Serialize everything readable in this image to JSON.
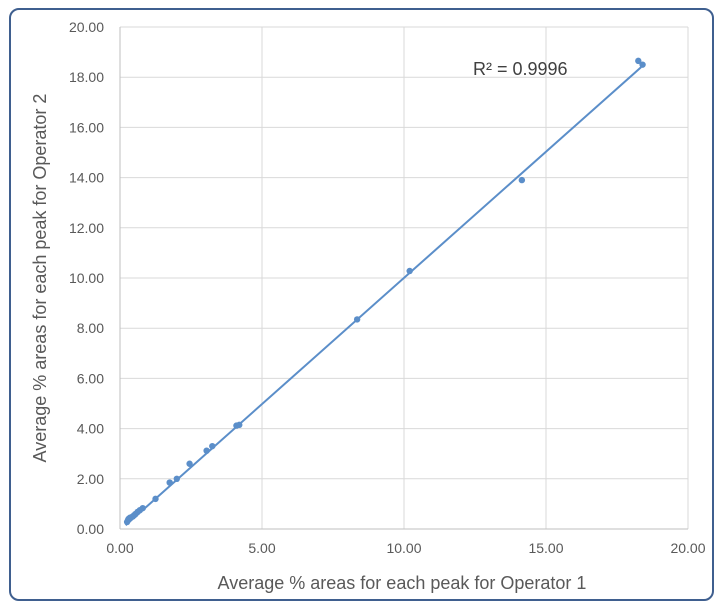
{
  "chart_data": {
    "type": "scatter",
    "title": "",
    "xlabel": "Average % areas for each peak for Operator 1",
    "ylabel": "Average %  areas for each peak for Operator 2",
    "xlim": [
      0,
      20
    ],
    "ylim": [
      0,
      20
    ],
    "x_ticks": [
      "0.00",
      "5.00",
      "10.00",
      "15.00",
      "20.00"
    ],
    "y_ticks": [
      "0.00",
      "2.00",
      "4.00",
      "6.00",
      "8.00",
      "10.00",
      "12.00",
      "14.00",
      "16.00",
      "18.00",
      "20.00"
    ],
    "grid": true,
    "series": [
      {
        "color": "#5b8ec9",
        "points": [
          [
            0.25,
            0.28
          ],
          [
            0.28,
            0.35
          ],
          [
            0.3,
            0.4
          ],
          [
            0.35,
            0.45
          ],
          [
            0.45,
            0.5
          ],
          [
            0.5,
            0.55
          ],
          [
            0.55,
            0.6
          ],
          [
            0.62,
            0.68
          ],
          [
            0.7,
            0.75
          ],
          [
            0.8,
            0.83
          ],
          [
            1.25,
            1.2
          ],
          [
            1.75,
            1.85
          ],
          [
            2.0,
            2.0
          ],
          [
            2.45,
            2.6
          ],
          [
            3.05,
            3.12
          ],
          [
            3.25,
            3.3
          ],
          [
            4.1,
            4.12
          ],
          [
            4.2,
            4.15
          ],
          [
            8.35,
            8.35
          ],
          [
            10.2,
            10.28
          ],
          [
            14.15,
            13.9
          ],
          [
            18.25,
            18.65
          ],
          [
            18.4,
            18.5
          ]
        ]
      }
    ],
    "trendline": {
      "type": "linear",
      "from": [
        0.2,
        0.15
      ],
      "to": [
        18.35,
        18.4
      ],
      "color": "#5b8ec9"
    },
    "annotation": "R² = 0.9996"
  }
}
